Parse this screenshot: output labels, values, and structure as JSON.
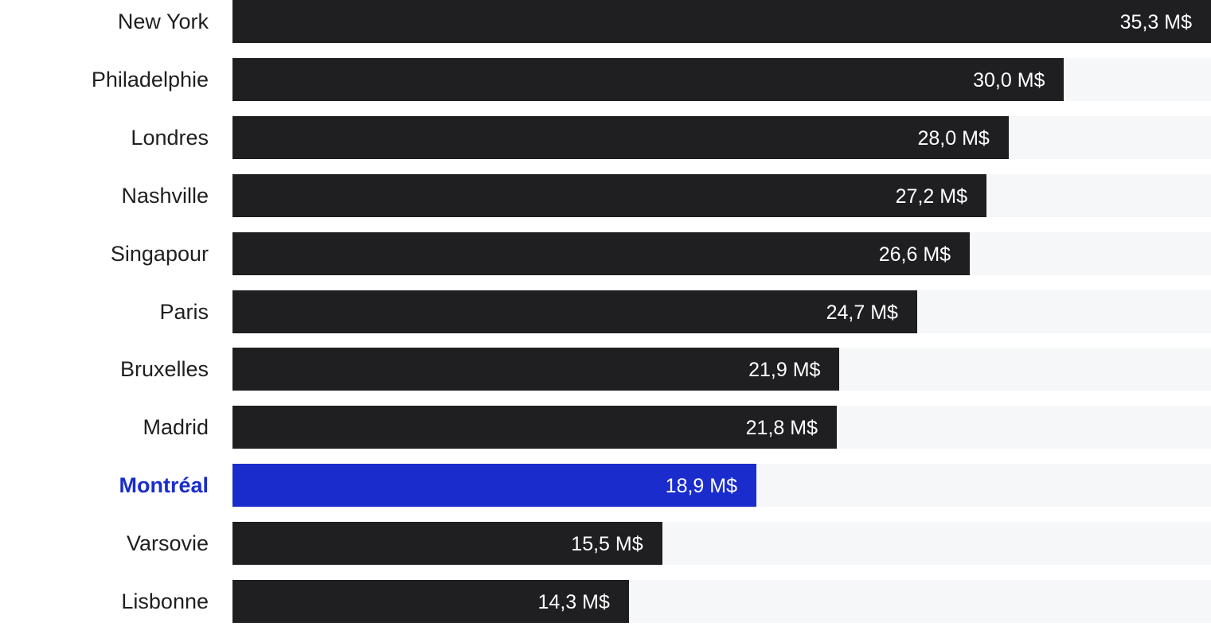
{
  "chart_data": {
    "type": "bar",
    "orientation": "horizontal",
    "title": "",
    "xlabel": "",
    "ylabel": "",
    "unit": "M$",
    "xlim": [
      0,
      35.3
    ],
    "grid": false,
    "legend": "none",
    "highlight": "Montréal",
    "categories": [
      "New York",
      "Philadelphie",
      "Londres",
      "Nashville",
      "Singapour",
      "Paris",
      "Bruxelles",
      "Madrid",
      "Montréal",
      "Varsovie",
      "Lisbonne"
    ],
    "values": [
      35.3,
      30.0,
      28.0,
      27.2,
      26.6,
      24.7,
      21.9,
      21.8,
      18.9,
      15.5,
      14.3
    ],
    "value_labels": [
      "35,3 M$",
      "30,0 M$",
      "28,0 M$",
      "27,2 M$",
      "26,6 M$",
      "24,7 M$",
      "21,9 M$",
      "21,8 M$",
      "18,9 M$",
      "15,5 M$",
      "14,3 M$"
    ]
  },
  "colors": {
    "bar": "#1f1f22",
    "highlight_bar": "#1a2ccc",
    "highlight_label": "#1a2ccc",
    "track": "#f6f7f9",
    "label": "#1f1f22",
    "value_text": "#ffffff"
  }
}
